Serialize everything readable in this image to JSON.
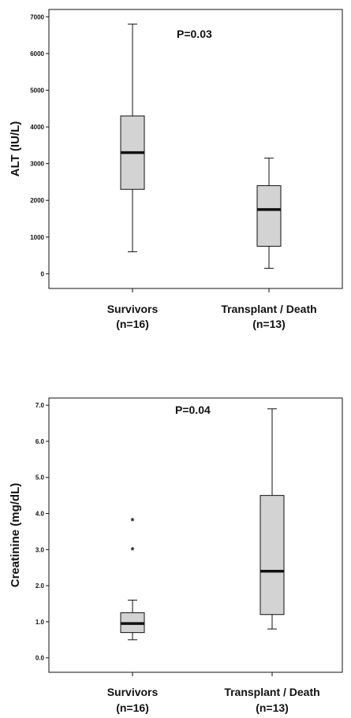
{
  "chart_data": [
    {
      "type": "boxplot",
      "ylabel": "ALT (IU/L)",
      "annotation": "P=0.03",
      "ylim": [
        -400,
        7200
      ],
      "yticks": [
        0,
        1000,
        2000,
        3000,
        4000,
        5000,
        6000,
        7000
      ],
      "tick_labels": [
        "0",
        "1000",
        "2000",
        "3000",
        "4000",
        "5000",
        "6000",
        "7000"
      ],
      "grid": false,
      "series": [
        {
          "label_line1": "Survivors",
          "label_line2": "(n=16)",
          "min": 600,
          "q1": 2300,
          "median": 3300,
          "q3": 4300,
          "max": 6800,
          "outliers": []
        },
        {
          "label_line1": "Transplant / Death",
          "label_line2": "(n=13)",
          "min": 150,
          "q1": 750,
          "median": 1750,
          "q3": 2400,
          "max": 3150,
          "outliers": []
        }
      ],
      "colors": {
        "box_fill": "#d3d3d3",
        "stroke": "#111111"
      }
    },
    {
      "type": "boxplot",
      "ylabel": "Creatinine (mg/dL)",
      "annotation": "P=0.04",
      "ylim": [
        -0.4,
        7.2
      ],
      "yticks": [
        0,
        1,
        2,
        3,
        4,
        5,
        6,
        7
      ],
      "tick_labels": [
        "0.0",
        "1.0",
        "2.0",
        "3.0",
        "4.0",
        "5.0",
        "6.0",
        "7.0"
      ],
      "grid": false,
      "series": [
        {
          "label_line1": "Survivors",
          "label_line2": "(n=16)",
          "min": 0.5,
          "q1": 0.7,
          "median": 0.95,
          "q3": 1.25,
          "max": 1.6,
          "outliers": [
            3.0,
            3.8
          ]
        },
        {
          "label_line1": "Transplant / Death",
          "label_line2": "(n=13)",
          "min": 0.8,
          "q1": 1.2,
          "median": 2.4,
          "q3": 4.5,
          "max": 6.9,
          "outliers": []
        }
      ],
      "colors": {
        "box_fill": "#d3d3d3",
        "stroke": "#111111"
      }
    }
  ]
}
